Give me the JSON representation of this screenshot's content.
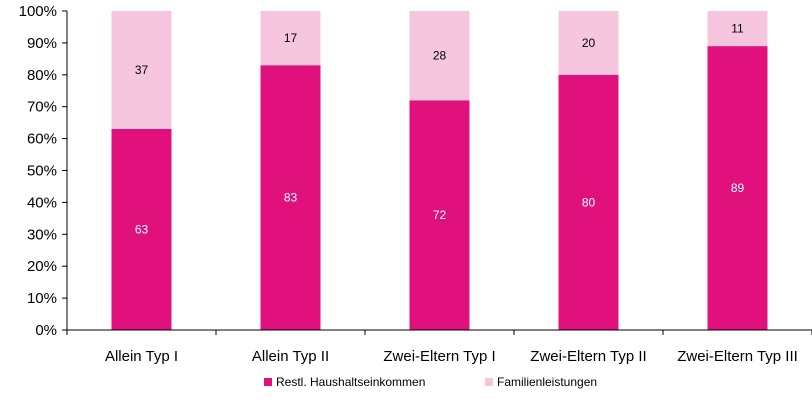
{
  "chart_data": {
    "type": "bar",
    "stacked": true,
    "categories": [
      "Allein Typ I",
      "Allein Typ II",
      "Zwei-Eltern Typ I",
      "Zwei-Eltern Typ II",
      "Zwei-Eltern Typ III"
    ],
    "series": [
      {
        "name": "Restl. Haushaltseinkommen",
        "values": [
          63,
          83,
          72,
          80,
          89
        ],
        "color": "#e0117d",
        "label_color": "#ffffff"
      },
      {
        "name": "Familienleistungen",
        "values": [
          37,
          17,
          28,
          20,
          11
        ],
        "color": "#f6c6de",
        "label_color": "#000000"
      }
    ],
    "y_ticks": [
      "0%",
      "10%",
      "20%",
      "30%",
      "40%",
      "50%",
      "60%",
      "70%",
      "80%",
      "90%",
      "100%"
    ],
    "ylim": [
      0,
      100
    ],
    "grid": false,
    "legend_position": "bottom"
  }
}
